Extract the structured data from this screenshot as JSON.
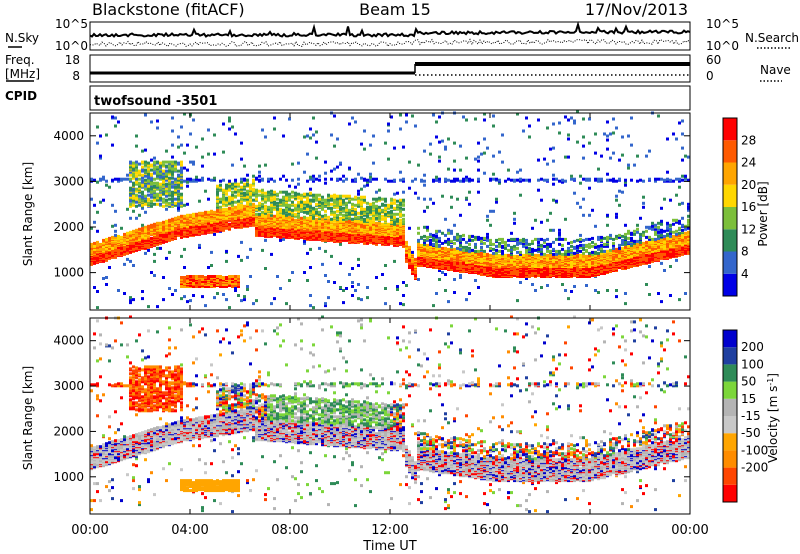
{
  "header": {
    "station": "Blackstone (fitACF)",
    "beam": "Beam 15",
    "date": "17/Nov/2013"
  },
  "strip_labels": {
    "nsky": "N.Sky",
    "nsearch": "N.Search",
    "freq_line1": "Freq.",
    "freq_line2": "[MHz]",
    "nave": "Nave",
    "cpid": "CPID",
    "cpid_value": "twofsound -3501",
    "nsky_ticks": [
      "10^5",
      "10^0"
    ],
    "nsearch_ticks": [
      "10^5",
      "10^0"
    ],
    "freq_ticks": [
      "18",
      "8"
    ],
    "nave_ticks": [
      "60",
      "0"
    ]
  },
  "colors": {
    "power_scale": [
      "#0000e6",
      "#3366cc",
      "#2e8b57",
      "#7cbf3a",
      "#ffd700",
      "#ffa500",
      "#ff5a00",
      "#ff0000"
    ],
    "velocity_scale": [
      "#ff0000",
      "#ff4500",
      "#ff8c00",
      "#ffa500",
      "#c8c8c8",
      "#b4b4b4",
      "#7cd63a",
      "#2e8b57",
      "#1f3fa0",
      "#0000cd"
    ]
  },
  "chart_data": [
    {
      "type": "line",
      "title": "Blackstone (fitACF)   Beam 15   17/Nov/2013",
      "panel": "noise",
      "series": [
        {
          "name": "N.Sky"
        },
        {
          "name": "N.Search"
        }
      ],
      "x": [
        "00:00",
        "04:00",
        "08:00",
        "12:00",
        "16:00",
        "20:00",
        "00:00"
      ],
      "ylim": [
        "10^0",
        "10^5"
      ]
    },
    {
      "type": "line",
      "panel": "frequency",
      "series": [
        {
          "name": "Freq. [MHz]"
        },
        {
          "name": "Nave"
        }
      ],
      "ylim_left": [
        8,
        18
      ],
      "ylim_right": [
        0,
        60
      ],
      "freq_step_time": "13:00"
    },
    {
      "type": "heatmap",
      "panel": "power",
      "xlabel": "",
      "ylabel": "Slant Range [km]",
      "xlim": [
        "00:00",
        "00:00"
      ],
      "ylim": [
        180,
        4500
      ],
      "y_ticks": [
        1000,
        2000,
        3000,
        4000
      ],
      "colorbar_label": "Power [dB]",
      "colorbar_ticks": [
        4,
        8,
        12,
        16,
        20,
        24,
        28
      ]
    },
    {
      "type": "heatmap",
      "panel": "velocity",
      "xlabel": "Time UT",
      "ylabel": "Slant Range [km]",
      "x_ticks": [
        "00:00",
        "04:00",
        "08:00",
        "12:00",
        "16:00",
        "20:00",
        "00:00"
      ],
      "y_ticks": [
        1000,
        2000,
        3000,
        4000
      ],
      "colorbar_label": "Velocity [m s^-1]",
      "colorbar_ticks": [
        200,
        100,
        50,
        15,
        -15,
        -50,
        -100,
        -200
      ]
    }
  ],
  "axes": {
    "xlabel": "Time UT",
    "ylabel": "Slant Range [km]",
    "x_ticks": [
      "00:00",
      "04:00",
      "08:00",
      "12:00",
      "16:00",
      "20:00",
      "00:00"
    ],
    "y_ticks": [
      "1000",
      "2000",
      "3000",
      "4000"
    ]
  },
  "colorbars": {
    "power_label": "Power [dB]",
    "power_ticks": [
      "28",
      "24",
      "20",
      "16",
      "12",
      "8",
      "4"
    ],
    "velocity_label": "Velocity [m s",
    "velocity_sup": "-1",
    "velocity_close": "]",
    "velocity_ticks": [
      "200",
      "100",
      "50",
      "15",
      "-15",
      "-50",
      "-100",
      "-200"
    ]
  }
}
